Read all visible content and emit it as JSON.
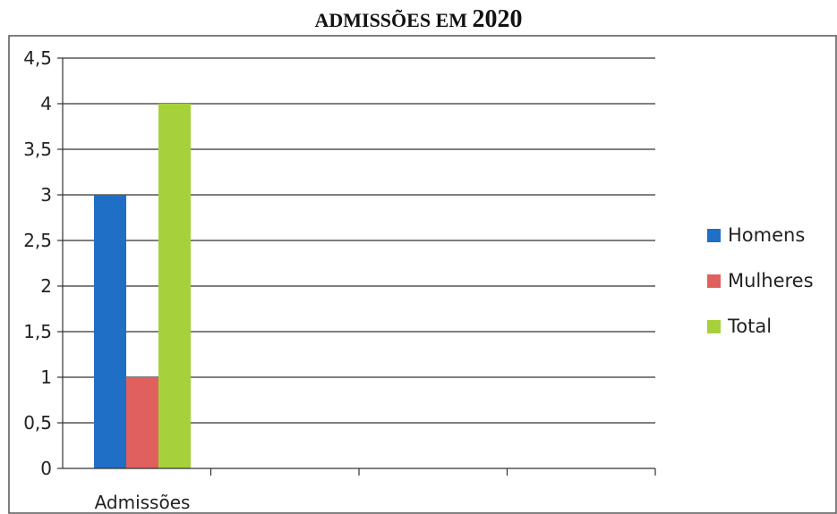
{
  "chart_data": {
    "type": "bar",
    "title": "ADMISSÕES EM",
    "title_year": "2020",
    "categories": [
      "Admissões"
    ],
    "series": [
      {
        "name": "Homens",
        "values": [
          3
        ],
        "color": "#1f6fc6"
      },
      {
        "name": "Mulheres",
        "values": [
          1
        ],
        "color": "#e0605e"
      },
      {
        "name": "Total",
        "values": [
          4
        ],
        "color": "#a6d13a"
      }
    ],
    "ylim": [
      0,
      4.5
    ],
    "yticks": [
      "0",
      "0,5",
      "1",
      "1,5",
      "2",
      "2,5",
      "3",
      "3,5",
      "4",
      "4,5"
    ],
    "xlabel": "",
    "ylabel": "",
    "grid": true,
    "legend_position": "right"
  }
}
